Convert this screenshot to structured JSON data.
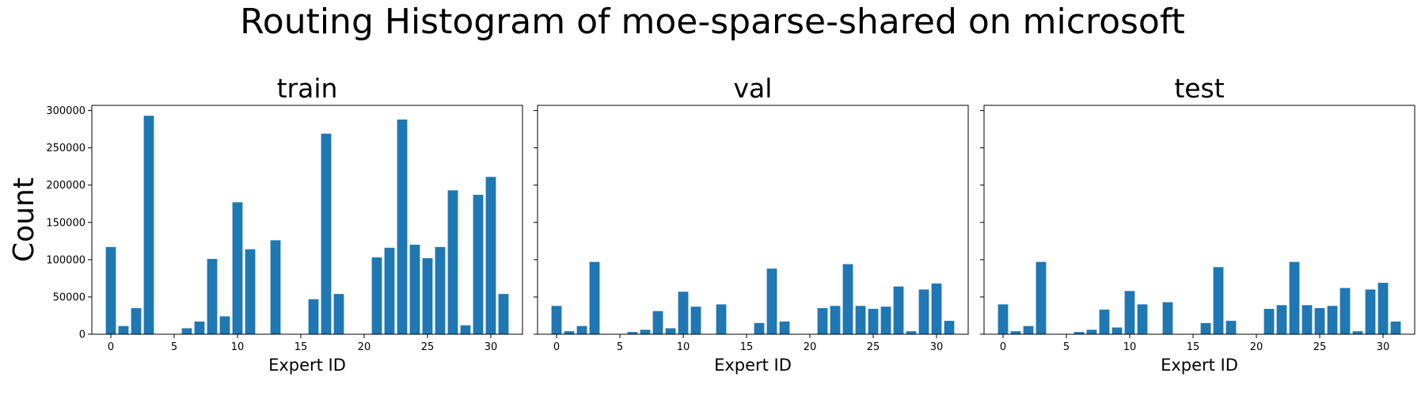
{
  "figure": {
    "title": "Routing Histogram of moe-sparse-shared on microsoft"
  },
  "chart_data": [
    {
      "type": "bar",
      "title": "train",
      "xlabel": "Expert ID",
      "ylabel": "Count",
      "color": "#1f77b4",
      "categories": [
        0,
        1,
        2,
        3,
        4,
        5,
        6,
        7,
        8,
        9,
        10,
        11,
        12,
        13,
        14,
        15,
        16,
        17,
        18,
        19,
        20,
        21,
        22,
        23,
        24,
        25,
        26,
        27,
        28,
        29,
        30,
        31
      ],
      "values": [
        117000,
        11000,
        35000,
        293000,
        0,
        0,
        8000,
        17000,
        101000,
        24000,
        177000,
        114000,
        0,
        126000,
        0,
        0,
        47000,
        269000,
        54000,
        0,
        0,
        103000,
        116000,
        288000,
        120000,
        102000,
        117000,
        193000,
        12000,
        187000,
        211000,
        54000
      ],
      "xticks": [
        0,
        5,
        10,
        15,
        20,
        25,
        30
      ],
      "yticks": [
        0,
        50000,
        100000,
        150000,
        200000,
        250000,
        300000
      ],
      "xlim": [
        -1.5,
        32.5
      ],
      "ylim": [
        0,
        307000
      ]
    },
    {
      "type": "bar",
      "title": "val",
      "xlabel": "Expert ID",
      "ylabel": "",
      "color": "#1f77b4",
      "categories": [
        0,
        1,
        2,
        3,
        4,
        5,
        6,
        7,
        8,
        9,
        10,
        11,
        12,
        13,
        14,
        15,
        16,
        17,
        18,
        19,
        20,
        21,
        22,
        23,
        24,
        25,
        26,
        27,
        28,
        29,
        30,
        31
      ],
      "values": [
        38000,
        4000,
        11000,
        97000,
        0,
        0,
        3000,
        6000,
        31000,
        8000,
        57000,
        37000,
        0,
        40000,
        0,
        0,
        15000,
        88000,
        17000,
        0,
        0,
        35000,
        38000,
        94000,
        38000,
        34000,
        37000,
        64000,
        4000,
        60000,
        68000,
        18000
      ],
      "xticks": [
        0,
        5,
        10,
        15,
        20,
        25,
        30
      ],
      "yticks": [
        0,
        50000,
        100000,
        150000,
        200000,
        250000,
        300000
      ],
      "xlim": [
        -1.5,
        32.5
      ],
      "ylim": [
        0,
        307000
      ]
    },
    {
      "type": "bar",
      "title": "test",
      "xlabel": "Expert ID",
      "ylabel": "",
      "color": "#1f77b4",
      "categories": [
        0,
        1,
        2,
        3,
        4,
        5,
        6,
        7,
        8,
        9,
        10,
        11,
        12,
        13,
        14,
        15,
        16,
        17,
        18,
        19,
        20,
        21,
        22,
        23,
        24,
        25,
        26,
        27,
        28,
        29,
        30,
        31
      ],
      "values": [
        40000,
        4000,
        11000,
        97000,
        0,
        0,
        3000,
        6000,
        33000,
        9000,
        58000,
        40000,
        0,
        43000,
        0,
        0,
        15000,
        90000,
        18000,
        0,
        0,
        34000,
        39000,
        97000,
        39000,
        35000,
        38000,
        62000,
        4000,
        60000,
        69000,
        17000
      ],
      "xticks": [
        0,
        5,
        10,
        15,
        20,
        25,
        30
      ],
      "yticks": [
        0,
        50000,
        100000,
        150000,
        200000,
        250000,
        300000
      ],
      "xlim": [
        -1.5,
        32.5
      ],
      "ylim": [
        0,
        307000
      ]
    }
  ]
}
